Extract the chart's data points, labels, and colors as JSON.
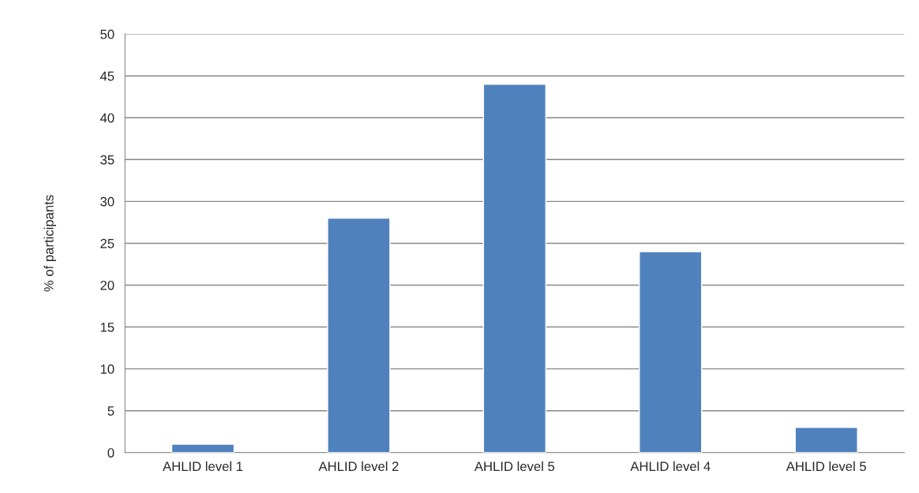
{
  "chart_data": {
    "type": "bar",
    "ylabel": "% of participants",
    "categories": [
      "AHLID level 1",
      "AHLID level 2",
      "AHLID level 5",
      "AHLID level 4",
      "AHLID level 5"
    ],
    "values": [
      1,
      28,
      44,
      24,
      3
    ],
    "color": "#4f81bd",
    "ylim": [
      0,
      50
    ],
    "yticks": [
      0,
      5,
      10,
      15,
      20,
      25,
      30,
      35,
      40,
      45,
      50
    ],
    "grid": "y",
    "legend": false
  }
}
